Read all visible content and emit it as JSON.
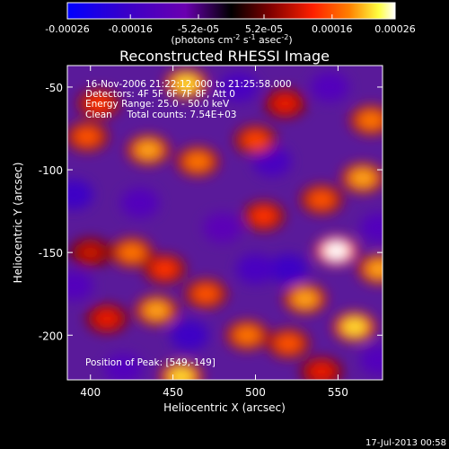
{
  "chart_data": {
    "type": "heatmap",
    "title": "Reconstructed RHESSI Image",
    "xlabel": "Heliocentric X (arcsec)",
    "ylabel": "Heliocentric Y (arcsec)",
    "xlim": [
      386,
      577
    ],
    "ylim": [
      -227,
      -37
    ],
    "x_ticks": [
      400,
      450,
      500,
      550
    ],
    "y_ticks": [
      -50,
      -100,
      -150,
      -200
    ],
    "colorbar": {
      "label_parts": [
        "(photons cm",
        "-2",
        " s",
        "-1",
        " asec",
        "-2",
        ")"
      ],
      "ticks": [
        "-0.00026",
        "-0.00016",
        "-5.2e-05",
        "5.2e-05",
        "0.00016",
        "0.00026"
      ],
      "range": [
        -0.00026,
        0.00026
      ],
      "colormap": "rainbow-to-fire"
    },
    "annotations": [
      "16-Nov-2006 21:22:12.000 to 21:25:58.000",
      "Detectors: 4F 5F 6F 7F 8F, Att 0",
      "Energy Range: 25.0 - 50.0 keV",
      "Clean     Total counts: 7.54E+03"
    ],
    "peak_label": "Position of Peak: [549,-149]",
    "bright_blobs": [
      {
        "x": 458,
        "y": -48,
        "value": 0.00022
      },
      {
        "x": 405,
        "y": -60,
        "value": 0.00014
      },
      {
        "x": 398,
        "y": -80,
        "value": 0.00016
      },
      {
        "x": 435,
        "y": -88,
        "value": 0.0002
      },
      {
        "x": 465,
        "y": -95,
        "value": 0.00018
      },
      {
        "x": 500,
        "y": -82,
        "value": 0.00015
      },
      {
        "x": 518,
        "y": -60,
        "value": 0.00012
      },
      {
        "x": 570,
        "y": -70,
        "value": 0.00018
      },
      {
        "x": 565,
        "y": -105,
        "value": 0.0002
      },
      {
        "x": 540,
        "y": -118,
        "value": 0.00016
      },
      {
        "x": 505,
        "y": -128,
        "value": 0.00014
      },
      {
        "x": 549,
        "y": -149,
        "value": 0.00026
      },
      {
        "x": 575,
        "y": -160,
        "value": 0.0002
      },
      {
        "x": 425,
        "y": -150,
        "value": 0.00018
      },
      {
        "x": 445,
        "y": -160,
        "value": 0.00014
      },
      {
        "x": 400,
        "y": -150,
        "value": 0.0001
      },
      {
        "x": 470,
        "y": -175,
        "value": 0.00016
      },
      {
        "x": 440,
        "y": -185,
        "value": 0.0002
      },
      {
        "x": 410,
        "y": -190,
        "value": 0.00012
      },
      {
        "x": 530,
        "y": -178,
        "value": 0.0002
      },
      {
        "x": 560,
        "y": -195,
        "value": 0.00022
      },
      {
        "x": 520,
        "y": -205,
        "value": 0.00016
      },
      {
        "x": 495,
        "y": -200,
        "value": 0.00018
      },
      {
        "x": 455,
        "y": -225,
        "value": 0.00022
      },
      {
        "x": 540,
        "y": -222,
        "value": 0.00012
      }
    ],
    "dark_blobs": [
      {
        "x": 490,
        "y": -50,
        "value": -0.00014
      },
      {
        "x": 545,
        "y": -50,
        "value": -0.00012
      },
      {
        "x": 390,
        "y": -115,
        "value": -0.00016
      },
      {
        "x": 430,
        "y": -120,
        "value": -0.00012
      },
      {
        "x": 510,
        "y": -95,
        "value": -0.00014
      },
      {
        "x": 480,
        "y": -135,
        "value": -0.0001
      },
      {
        "x": 520,
        "y": -160,
        "value": -0.00016
      },
      {
        "x": 500,
        "y": -160,
        "value": -0.00014
      },
      {
        "x": 390,
        "y": -170,
        "value": -0.00012
      },
      {
        "x": 460,
        "y": -200,
        "value": -0.00016
      },
      {
        "x": 575,
        "y": -135,
        "value": -0.00012
      },
      {
        "x": 575,
        "y": -215,
        "value": -0.00012
      },
      {
        "x": 420,
        "y": -220,
        "value": -0.00012
      }
    ]
  },
  "footer": {
    "timestamp": "17-Jul-2013 00:58"
  }
}
